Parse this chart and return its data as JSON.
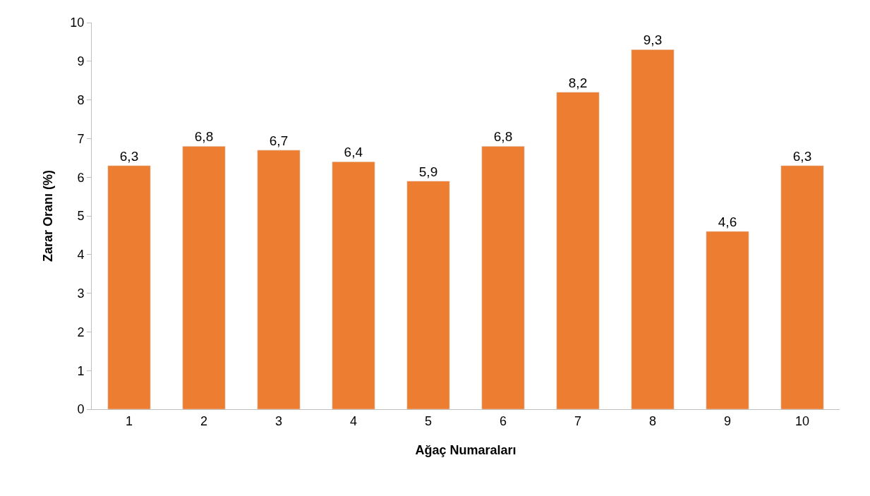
{
  "chart_data": {
    "type": "bar",
    "xlabel": "Ağaç Numaraları",
    "ylabel": "Zarar Oranı (%)",
    "categories": [
      "1",
      "2",
      "3",
      "4",
      "5",
      "6",
      "7",
      "8",
      "9",
      "10"
    ],
    "values": [
      6.3,
      6.8,
      6.7,
      6.4,
      5.9,
      6.8,
      8.2,
      9.3,
      4.6,
      6.3
    ],
    "value_labels": [
      "6,3",
      "6,8",
      "6,7",
      "6,4",
      "5,9",
      "6,8",
      "8,2",
      "9,3",
      "4,6",
      "6,3"
    ],
    "color": "#ed7d31",
    "ylim": [
      0,
      10
    ],
    "yticks": [
      0,
      1,
      2,
      3,
      4,
      5,
      6,
      7,
      8,
      9,
      10
    ],
    "grid": false,
    "legend": false
  }
}
